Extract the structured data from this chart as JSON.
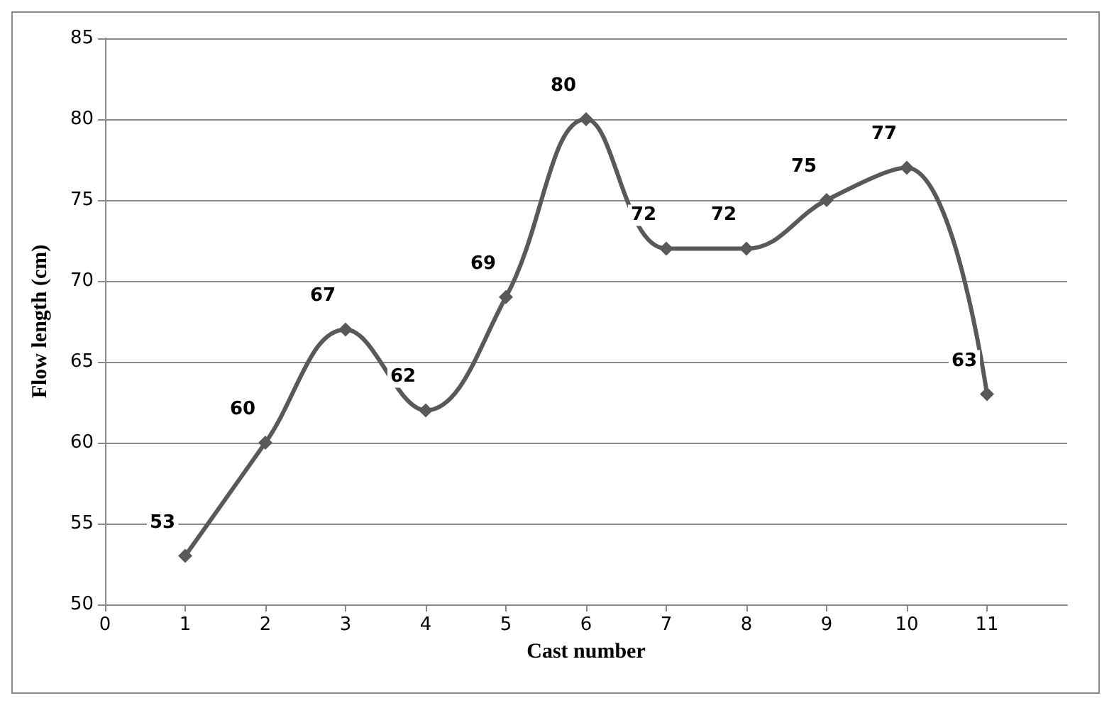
{
  "chart_data": {
    "type": "line",
    "xlabel": "Cast number",
    "ylabel": "Flow length (cm)",
    "x": [
      1,
      2,
      3,
      4,
      5,
      6,
      7,
      8,
      9,
      10,
      11
    ],
    "series": [
      {
        "color": "#595959",
        "values": [
          53,
          60,
          67,
          62,
          69,
          80,
          72,
          72,
          75,
          77,
          63
        ]
      }
    ],
    "xlim": [
      0,
      12
    ],
    "xticks": [
      0,
      1,
      2,
      3,
      4,
      5,
      6,
      7,
      8,
      9,
      10,
      11
    ],
    "ylim": [
      50,
      85
    ],
    "yticks": [
      50,
      55,
      60,
      65,
      70,
      75,
      80,
      85
    ],
    "grid": "y",
    "marker": "diamond",
    "line_style": "solid",
    "data_labels": true
  }
}
